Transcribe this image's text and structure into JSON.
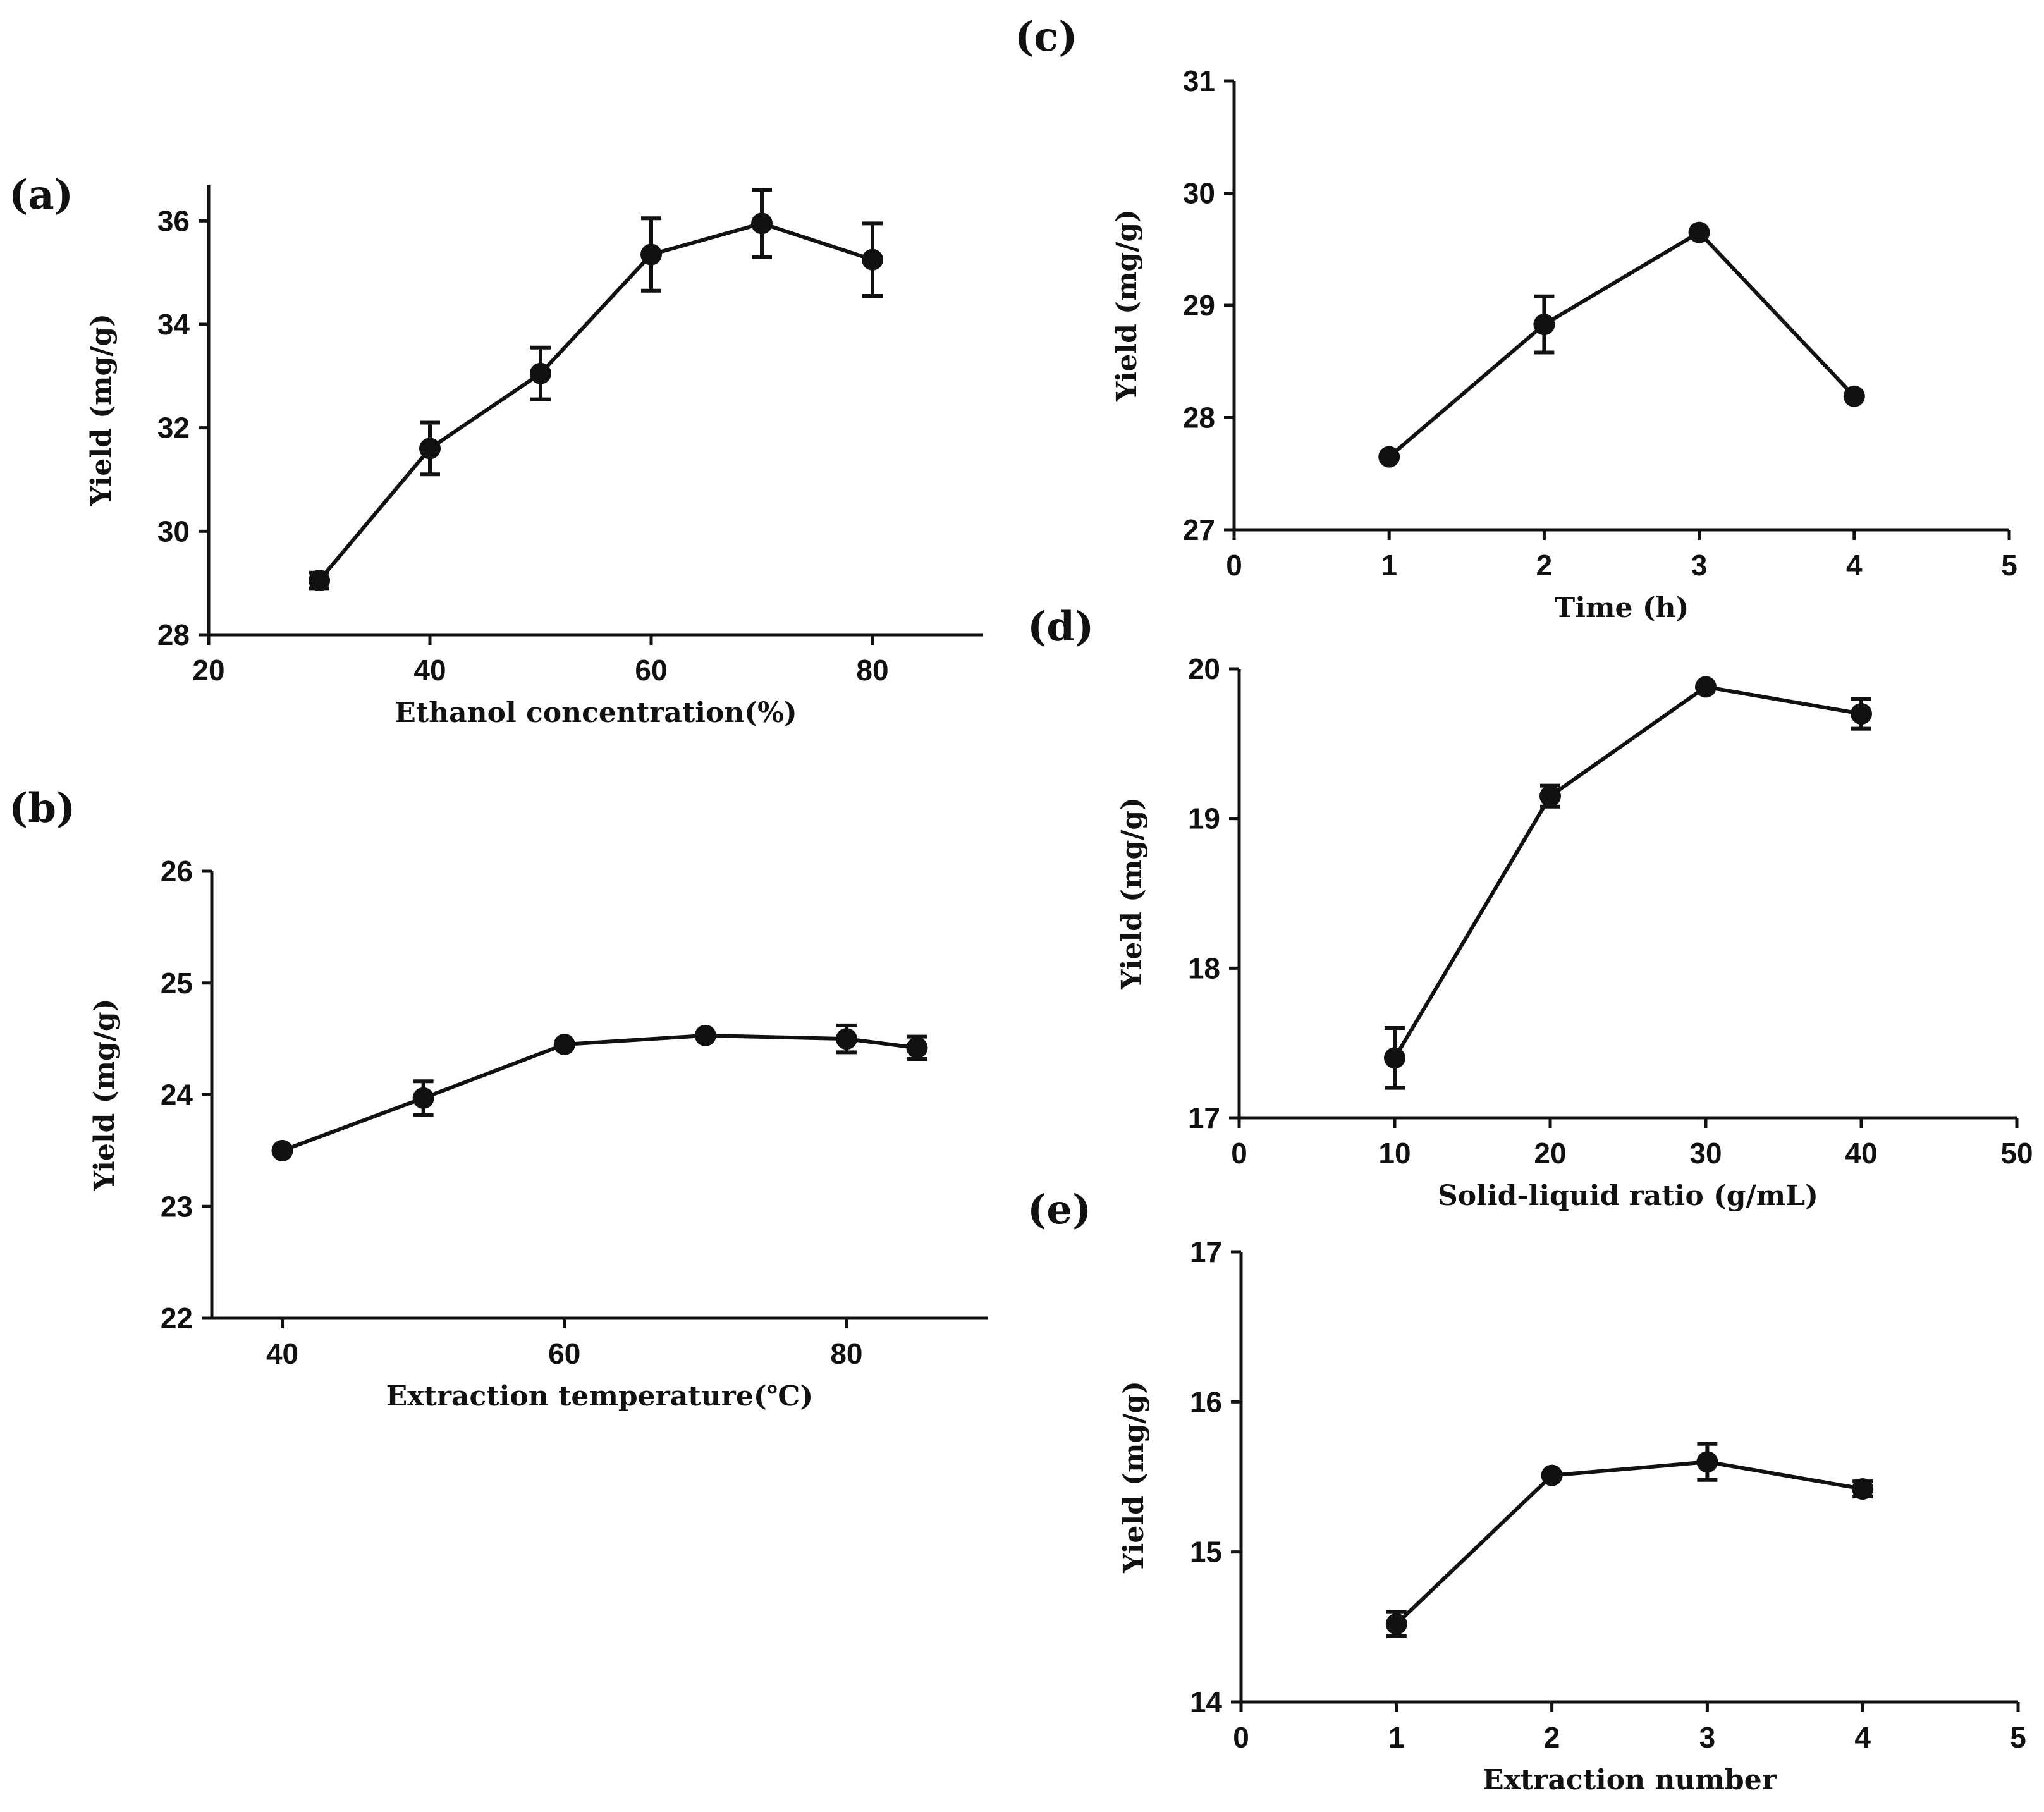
{
  "colors": {
    "ink": "#111111",
    "background": "#ffffff"
  },
  "chart_data": [
    {
      "id": "a",
      "type": "line",
      "panel_label": "(a)",
      "title": "",
      "xlabel": "Ethanol concentration(%)",
      "ylabel": "Yield (mg/g)",
      "xlim": [
        20,
        90
      ],
      "ylim": [
        28,
        36.7
      ],
      "xticks": [
        20,
        40,
        60,
        80
      ],
      "yticks": [
        28,
        30,
        32,
        34,
        36
      ],
      "series": [
        {
          "name": "Yield",
          "x": [
            30,
            40,
            50,
            60,
            70,
            80
          ],
          "y": [
            29.05,
            31.6,
            33.05,
            35.35,
            35.95,
            35.25
          ],
          "err": [
            0.15,
            0.5,
            0.5,
            0.7,
            0.65,
            0.7
          ]
        }
      ]
    },
    {
      "id": "b",
      "type": "line",
      "panel_label": "(b)",
      "title": "",
      "xlabel": "Extraction temperature(℃)",
      "ylabel": "Yield (mg/g)",
      "xlim": [
        35,
        90
      ],
      "ylim": [
        22,
        26
      ],
      "xticks": [
        40,
        60,
        80
      ],
      "yticks": [
        22,
        23,
        24,
        25,
        26
      ],
      "series": [
        {
          "name": "Yield",
          "x": [
            40,
            50,
            60,
            70,
            80,
            85
          ],
          "y": [
            23.5,
            23.97,
            24.45,
            24.53,
            24.5,
            24.42
          ],
          "err": [
            0,
            0.15,
            0,
            0,
            0.12,
            0.1
          ]
        }
      ]
    },
    {
      "id": "c",
      "type": "line",
      "panel_label": "(c)",
      "title": "",
      "xlabel": "Time (h)",
      "ylabel": "Yield (mg/g)",
      "xlim": [
        0,
        5
      ],
      "ylim": [
        27,
        31
      ],
      "xticks": [
        0,
        1,
        2,
        3,
        4,
        5
      ],
      "yticks": [
        27,
        28,
        29,
        30,
        31
      ],
      "series": [
        {
          "name": "Yield",
          "x": [
            1,
            2,
            3,
            4
          ],
          "y": [
            27.65,
            28.83,
            29.65,
            28.19
          ],
          "err": [
            0,
            0.25,
            0,
            0
          ]
        }
      ]
    },
    {
      "id": "d",
      "type": "line",
      "panel_label": "(d)",
      "title": "",
      "xlabel": "Solid-liquid ratio (g/mL)",
      "ylabel": "Yield (mg/g)",
      "xlim": [
        0,
        50
      ],
      "ylim": [
        17,
        20
      ],
      "xticks": [
        0,
        10,
        20,
        30,
        40,
        50
      ],
      "yticks": [
        17,
        18,
        19,
        20
      ],
      "series": [
        {
          "name": "Yield",
          "x": [
            10,
            20,
            30,
            40
          ],
          "y": [
            17.4,
            19.15,
            19.88,
            19.7
          ],
          "err": [
            0.2,
            0.07,
            0,
            0.1
          ]
        }
      ]
    },
    {
      "id": "e",
      "type": "line",
      "panel_label": "(e)",
      "title": "",
      "xlabel": "Extraction number",
      "ylabel": "Yield (mg/g)",
      "xlim": [
        0,
        5
      ],
      "ylim": [
        14,
        17
      ],
      "xticks": [
        0,
        1,
        2,
        3,
        4,
        5
      ],
      "yticks": [
        14,
        15,
        16,
        17
      ],
      "series": [
        {
          "name": "Yield",
          "x": [
            1,
            2,
            3,
            4
          ],
          "y": [
            14.52,
            15.51,
            15.6,
            15.42
          ],
          "err": [
            0.08,
            0,
            0.12,
            0.05
          ]
        }
      ]
    }
  ]
}
